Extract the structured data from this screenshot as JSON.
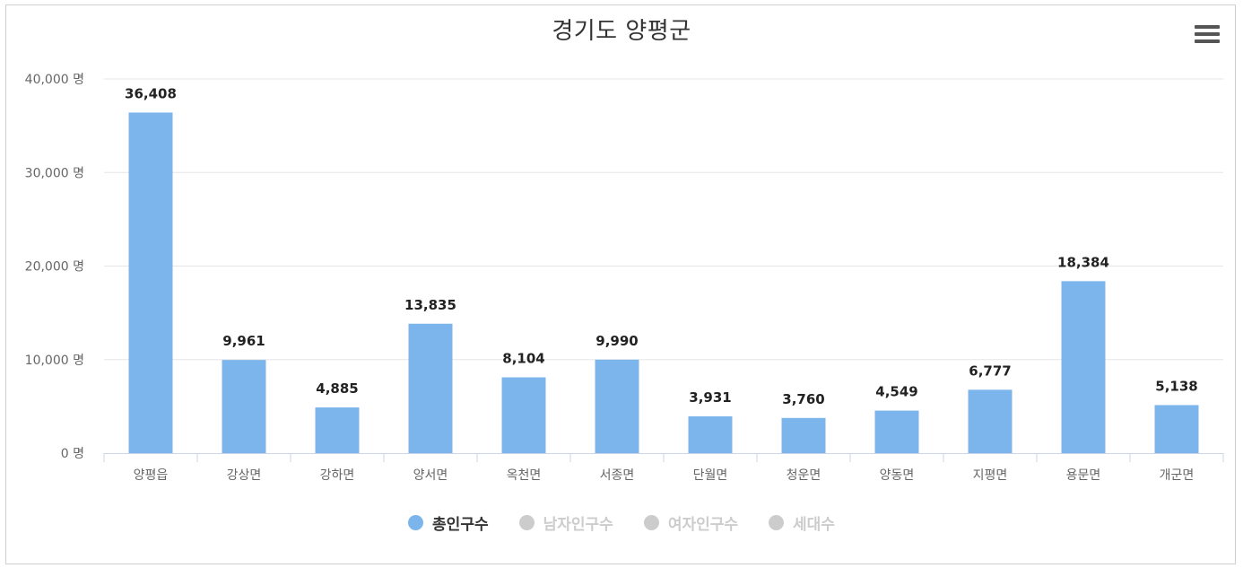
{
  "header": {
    "title": "경기도 양평군",
    "menu_icon": "hamburger-menu-icon"
  },
  "colors": {
    "bar": "#7cb5ec",
    "legend_inactive": "#cccccc",
    "legend_active_text": "#333333"
  },
  "legend": {
    "items": [
      {
        "label": "총인구수",
        "active": true
      },
      {
        "label": "남자인구수",
        "active": false
      },
      {
        "label": "여자인구수",
        "active": false
      },
      {
        "label": "세대수",
        "active": false
      }
    ]
  },
  "chart_data": {
    "type": "bar",
    "title": "경기도 양평군",
    "categories": [
      "양평읍",
      "강상면",
      "강하면",
      "양서면",
      "옥천면",
      "서종면",
      "단월면",
      "청운면",
      "양동면",
      "지평면",
      "용문면",
      "개군면"
    ],
    "series": [
      {
        "name": "총인구수",
        "values": [
          36408,
          9961,
          4885,
          13835,
          8104,
          9990,
          3931,
          3760,
          4549,
          6777,
          18384,
          5138
        ],
        "value_labels": [
          "36,408",
          "9,961",
          "4,885",
          "13,835",
          "8,104",
          "9,990",
          "3,931",
          "3,760",
          "4,549",
          "6,777",
          "18,384",
          "5,138"
        ]
      }
    ],
    "yticks": [
      0,
      10000,
      20000,
      30000,
      40000
    ],
    "ytick_labels": [
      "0 명",
      "10,000 명",
      "20,000 명",
      "30,000 명",
      "40,000 명"
    ],
    "ylim": [
      0,
      40000
    ],
    "grid": true,
    "legend_position": "bottom-center"
  }
}
